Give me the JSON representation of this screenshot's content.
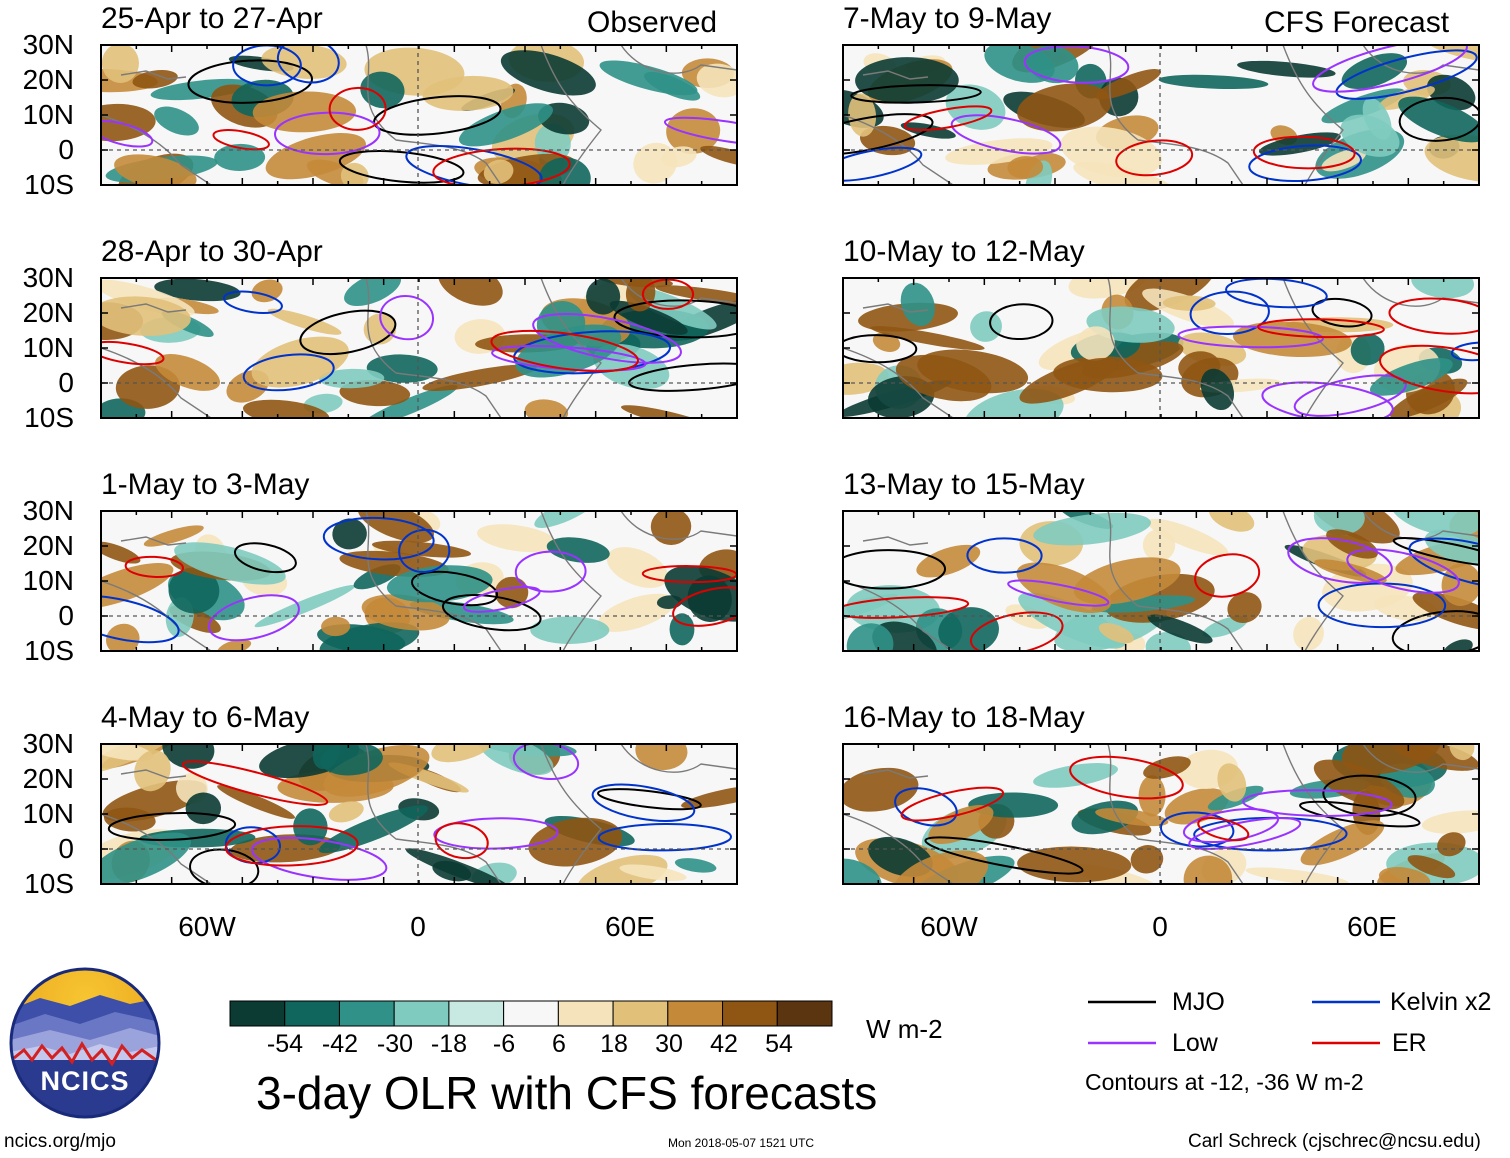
{
  "header": {
    "observed_label": "Observed",
    "forecast_label": "CFS Forecast"
  },
  "panels_left": [
    {
      "title": "25-Apr to 27-Apr"
    },
    {
      "title": "28-Apr to 30-Apr"
    },
    {
      "title": "1-May to 3-May"
    },
    {
      "title": "4-May to 6-May"
    }
  ],
  "panels_right": [
    {
      "title": "7-May to 9-May"
    },
    {
      "title": "10-May to 12-May"
    },
    {
      "title": "13-May to 15-May"
    },
    {
      "title": "16-May to 18-May"
    }
  ],
  "chart_data": {
    "type": "heatmap",
    "title": "3-day OLR with CFS forecasts",
    "lat_ticks": [
      "30N",
      "20N",
      "10N",
      "0",
      "10S"
    ],
    "lon_ticks": [
      "60W",
      "0",
      "60E"
    ],
    "units": "W m-2",
    "colorbar": {
      "labels": [
        "-54",
        "-42",
        "-30",
        "-18",
        "-6",
        "6",
        "18",
        "30",
        "42",
        "54"
      ],
      "colors": [
        "#0b3b33",
        "#10665c",
        "#2f9187",
        "#7fcbbf",
        "#c8e9e2",
        "#f7f7f7",
        "#f5e3bb",
        "#e1c07a",
        "#c48a3a",
        "#8f5513",
        "#5a3510"
      ]
    },
    "legend": [
      {
        "name": "MJO",
        "color": "#000000"
      },
      {
        "name": "Kelvin x2",
        "color": "#0033cc"
      },
      {
        "name": "Low",
        "color": "#9933ff"
      },
      {
        "name": "ER",
        "color": "#dd0000"
      }
    ],
    "contour_note": "Contours at -12, -36 W m-2"
  },
  "logo": {
    "text": "NCICS"
  },
  "footer": {
    "left": "ncics.org/mjo",
    "center": "Mon 2018-05-07 1521 UTC",
    "right": "Carl Schreck (cjschrec@ncsu.edu)"
  }
}
